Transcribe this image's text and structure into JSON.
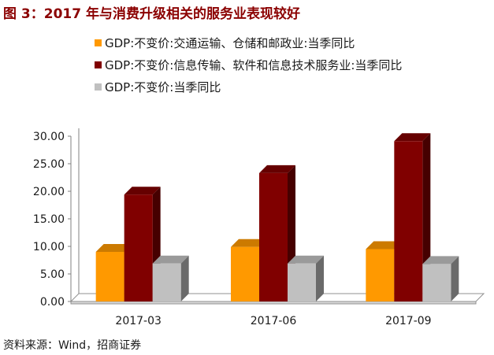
{
  "page": {
    "title": "图 3：2017 年与消费升级相关的服务业表现较好",
    "source": "资料来源：Wind，招商证券"
  },
  "chart_data": {
    "type": "bar",
    "categories": [
      "2017-03",
      "2017-06",
      "2017-09"
    ],
    "series": [
      {
        "name": "GDP:不变价:交通运输、仓储和邮政业:当季同比",
        "values": [
          9.0,
          9.9,
          9.5
        ],
        "color": "#FF9900"
      },
      {
        "name": "GDP:不变价:信息传输、软件和信息技术服务业:当季同比",
        "values": [
          19.4,
          23.3,
          29.1
        ],
        "color": "#800000"
      },
      {
        "name": "GDP:不变价:当季同比",
        "values": [
          6.9,
          6.9,
          6.8
        ],
        "color": "#C0C0C0"
      }
    ],
    "ylim": [
      0,
      30
    ],
    "yticks": [
      "0.00",
      "5.00",
      "10.00",
      "15.00",
      "20.00",
      "25.00",
      "30.00"
    ],
    "legend_position": "top",
    "grid": false
  }
}
